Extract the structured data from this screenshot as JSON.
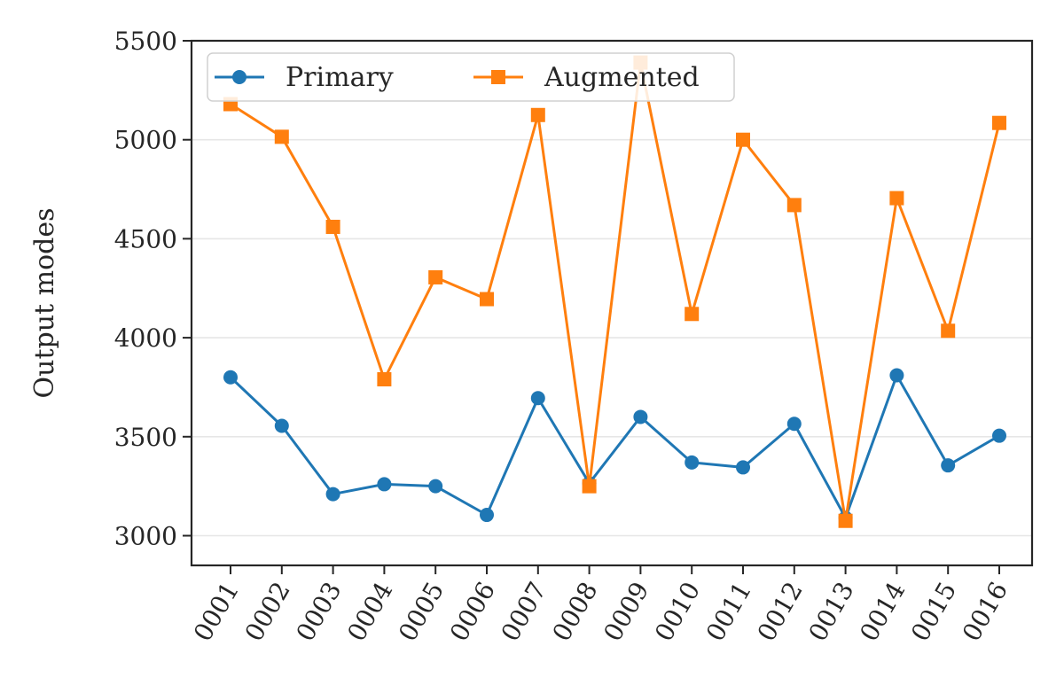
{
  "chart_data": {
    "type": "line",
    "ylabel": "Output modes",
    "ylim": [
      2850,
      5500
    ],
    "yticks": [
      3000,
      3500,
      4000,
      4500,
      5000,
      5500
    ],
    "grid": "horizontal",
    "legend_position": "upper-left",
    "categories": [
      "0001",
      "0002",
      "0003",
      "0004",
      "0005",
      "0006",
      "0007",
      "0008",
      "0009",
      "0010",
      "0011",
      "0012",
      "0013",
      "0014",
      "0015",
      "0016"
    ],
    "series": [
      {
        "name": "Primary",
        "color": "#1f77b4",
        "marker": "circle",
        "values": [
          3800,
          3555,
          3210,
          3260,
          3250,
          3105,
          3695,
          3265,
          3600,
          3370,
          3345,
          3565,
          3090,
          3810,
          3355,
          3505
        ]
      },
      {
        "name": "Augmented",
        "color": "#ff7f0e",
        "marker": "square",
        "values": [
          5180,
          5015,
          4560,
          3790,
          4305,
          4195,
          5125,
          3250,
          5390,
          4120,
          5000,
          4670,
          3075,
          4705,
          4035,
          5085
        ]
      }
    ]
  }
}
